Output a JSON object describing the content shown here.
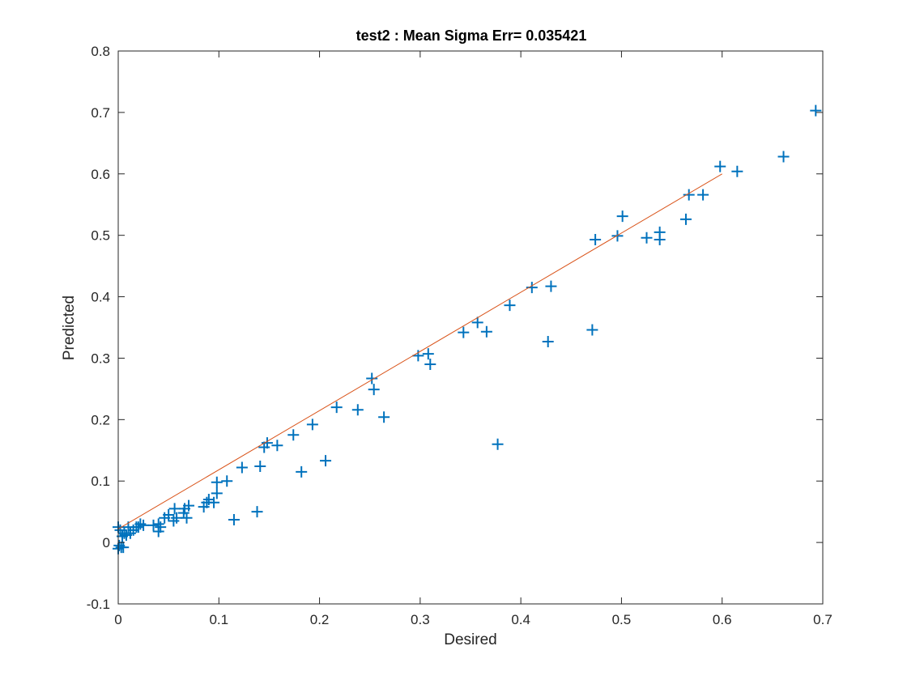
{
  "chart_data": {
    "type": "scatter",
    "title": "test2 :  Mean Sigma Err= 0.035421",
    "xlabel": "Desired",
    "ylabel": "Predicted",
    "xlim": [
      0,
      0.7
    ],
    "ylim": [
      -0.1,
      0.8
    ],
    "grid": false,
    "xticks": [
      "0",
      "0.1",
      "0.2",
      "0.3",
      "0.4",
      "0.5",
      "0.6",
      "0.7"
    ],
    "yticks": [
      "-0.1",
      "0",
      "0.1",
      "0.2",
      "0.3",
      "0.4",
      "0.5",
      "0.6",
      "0.7",
      "0.8"
    ],
    "colors": {
      "points": "#0072bd",
      "fit_line": "#d95319",
      "axes": "#262626"
    },
    "series": [
      {
        "type": "scatter",
        "marker": "plus",
        "points": [
          [
            0.0,
            -0.01
          ],
          [
            0.001,
            -0.005
          ],
          [
            0.003,
            -0.008
          ],
          [
            0.005,
            -0.008
          ],
          [
            0.0,
            0.025
          ],
          [
            0.002,
            0.02
          ],
          [
            0.004,
            0.01
          ],
          [
            0.006,
            0.015
          ],
          [
            0.008,
            0.012
          ],
          [
            0.01,
            0.025
          ],
          [
            0.012,
            0.015
          ],
          [
            0.015,
            0.02
          ],
          [
            0.018,
            0.025
          ],
          [
            0.02,
            0.025
          ],
          [
            0.022,
            0.03
          ],
          [
            0.025,
            0.028
          ],
          [
            0.035,
            0.028
          ],
          [
            0.04,
            0.03
          ],
          [
            0.04,
            0.018
          ],
          [
            0.042,
            0.025
          ],
          [
            0.046,
            0.04
          ],
          [
            0.05,
            0.045
          ],
          [
            0.055,
            0.035
          ],
          [
            0.056,
            0.055
          ],
          [
            0.058,
            0.04
          ],
          [
            0.065,
            0.048
          ],
          [
            0.066,
            0.055
          ],
          [
            0.068,
            0.04
          ],
          [
            0.07,
            0.06
          ],
          [
            0.085,
            0.058
          ],
          [
            0.088,
            0.065
          ],
          [
            0.09,
            0.07
          ],
          [
            0.095,
            0.065
          ],
          [
            0.098,
            0.08
          ],
          [
            0.098,
            0.098
          ],
          [
            0.108,
            0.1
          ],
          [
            0.115,
            0.037
          ],
          [
            0.123,
            0.122
          ],
          [
            0.138,
            0.05
          ],
          [
            0.141,
            0.124
          ],
          [
            0.145,
            0.155
          ],
          [
            0.148,
            0.162
          ],
          [
            0.158,
            0.158
          ],
          [
            0.174,
            0.175
          ],
          [
            0.182,
            0.115
          ],
          [
            0.193,
            0.192
          ],
          [
            0.206,
            0.133
          ],
          [
            0.217,
            0.22
          ],
          [
            0.238,
            0.216
          ],
          [
            0.252,
            0.267
          ],
          [
            0.254,
            0.249
          ],
          [
            0.264,
            0.204
          ],
          [
            0.298,
            0.304
          ],
          [
            0.308,
            0.307
          ],
          [
            0.31,
            0.29
          ],
          [
            0.343,
            0.342
          ],
          [
            0.357,
            0.358
          ],
          [
            0.366,
            0.343
          ],
          [
            0.377,
            0.16
          ],
          [
            0.389,
            0.386
          ],
          [
            0.411,
            0.415
          ],
          [
            0.427,
            0.327
          ],
          [
            0.43,
            0.417
          ],
          [
            0.471,
            0.346
          ],
          [
            0.474,
            0.493
          ],
          [
            0.496,
            0.499
          ],
          [
            0.501,
            0.531
          ],
          [
            0.525,
            0.496
          ],
          [
            0.538,
            0.493
          ],
          [
            0.538,
            0.505
          ],
          [
            0.564,
            0.526
          ],
          [
            0.567,
            0.566
          ],
          [
            0.581,
            0.566
          ],
          [
            0.598,
            0.612
          ],
          [
            0.615,
            0.604
          ],
          [
            0.661,
            0.628
          ],
          [
            0.693,
            0.703
          ]
        ]
      },
      {
        "type": "line",
        "x": [
          0,
          0.6
        ],
        "y": [
          0.022,
          0.6
        ]
      }
    ]
  }
}
